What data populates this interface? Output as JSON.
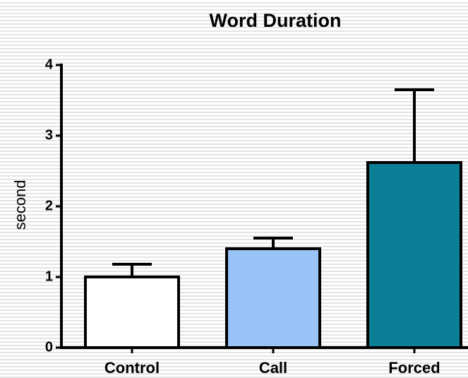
{
  "chart_data": {
    "type": "bar",
    "title": "Word Duration",
    "y_label": "second",
    "categories": [
      "Control",
      "Call",
      "Forced"
    ],
    "values": [
      1.0,
      1.4,
      2.62
    ],
    "errors": [
      0.18,
      0.15,
      1.03
    ],
    "colors": [
      "#ffffff",
      "#99c2f7",
      "#0a7f96"
    ],
    "ylim": [
      0,
      4
    ],
    "yticks": [
      0,
      1,
      2,
      3,
      4
    ]
  }
}
